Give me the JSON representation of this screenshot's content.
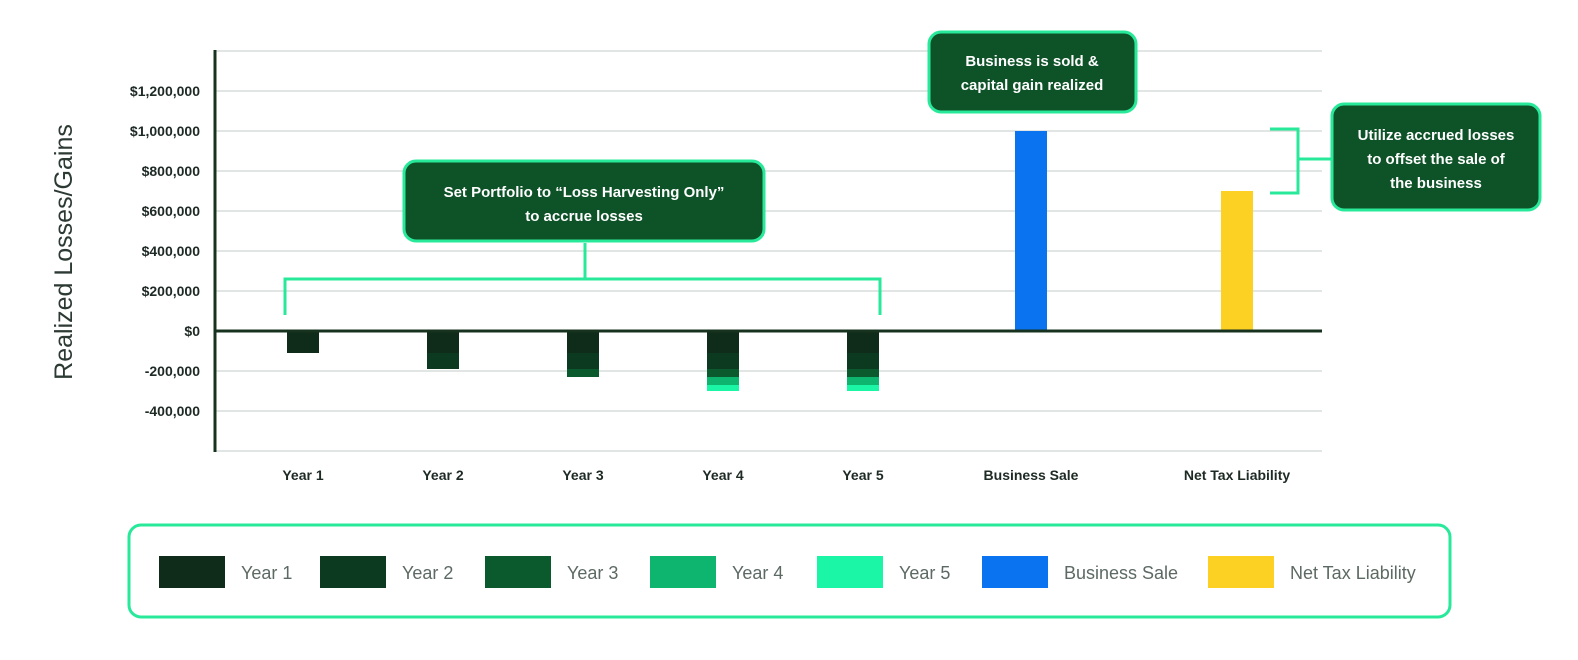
{
  "chart_data": {
    "type": "bar",
    "ylabel": "Realized Losses/Gains",
    "xlabel": "",
    "ylim": [
      -600000,
      1400000
    ],
    "yticks": [
      -400000,
      -200000,
      0,
      200000,
      400000,
      600000,
      800000,
      1000000,
      1200000
    ],
    "ytick_labels": [
      "-400,000",
      "-200,000",
      "$0",
      "$200,000",
      "$400,000",
      "$600,000",
      "$800,000",
      "$1,000,000",
      "$1,200,000"
    ],
    "grid": true,
    "categories": [
      "Year 1",
      "Year 2",
      "Year 3",
      "Year 4",
      "Year 5",
      "Business Sale",
      "Net Tax Liability"
    ],
    "series": [
      {
        "name": "Year 1",
        "color": "#0f2b1a",
        "values": [
          -110000,
          -110000,
          -110000,
          -110000,
          -110000,
          0,
          0
        ]
      },
      {
        "name": "Year 2",
        "color": "#0c3a20",
        "values": [
          0,
          -80000,
          -80000,
          -80000,
          -80000,
          0,
          0
        ]
      },
      {
        "name": "Year 3",
        "color": "#0b5a2e",
        "values": [
          0,
          0,
          -40000,
          -40000,
          -40000,
          0,
          0
        ]
      },
      {
        "name": "Year 4",
        "color": "#0db56f",
        "values": [
          0,
          0,
          0,
          -40000,
          -40000,
          0,
          0
        ]
      },
      {
        "name": "Year 5",
        "color": "#1af5a6",
        "values": [
          0,
          0,
          0,
          -30000,
          -30000,
          0,
          0
        ]
      },
      {
        "name": "Business Sale",
        "color": "#0a74f0",
        "values": [
          0,
          0,
          0,
          0,
          0,
          1000000,
          0
        ]
      },
      {
        "name": "Net Tax Liability",
        "color": "#fdd024",
        "values": [
          0,
          0,
          0,
          0,
          0,
          0,
          700000
        ]
      }
    ],
    "annotations": [
      {
        "id": "harvest",
        "lines": [
          "Set Portfolio to “Loss Harvesting Only”",
          "to accrue losses"
        ]
      },
      {
        "id": "sale",
        "lines": [
          "Business is sold &",
          "capital gain realized"
        ]
      },
      {
        "id": "offset",
        "lines": [
          "Utilize accrued losses",
          "to offset the sale of",
          "the business"
        ]
      }
    ],
    "legend": {
      "placement": "bottom",
      "entries": [
        "Year 1",
        "Year 2",
        "Year 3",
        "Year 4",
        "Year 5",
        "Business Sale",
        "Net Tax Liability"
      ]
    }
  },
  "colors": {
    "callout_fill": "#0e5227",
    "callout_border": "#28e99a",
    "bracket": "#28e99a",
    "gridline": "#cfd8d4",
    "axis": "#17331f",
    "legend_border": "#28e99a"
  }
}
